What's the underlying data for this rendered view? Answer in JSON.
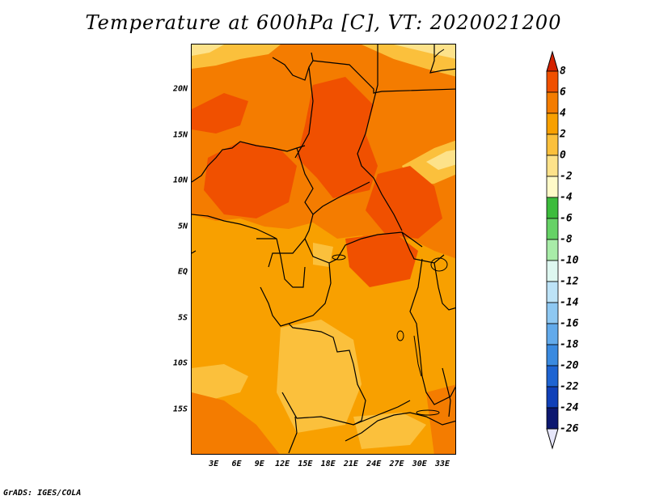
{
  "title": "Temperature at 600hPa [C], VT: 2020021200",
  "credit": "GrADS: IGES/COLA",
  "map": {
    "lon_range": [
      0,
      34.8
    ],
    "lat_range": [
      -20,
      25
    ],
    "lat_ticks": [
      {
        "label": "20N",
        "lat": 20
      },
      {
        "label": "15N",
        "lat": 15
      },
      {
        "label": "10N",
        "lat": 10
      },
      {
        "label": "5N",
        "lat": 5
      },
      {
        "label": "EQ",
        "lat": 0
      },
      {
        "label": "5S",
        "lat": -5
      },
      {
        "label": "10S",
        "lat": -10
      },
      {
        "label": "15S",
        "lat": -15
      }
    ],
    "lon_ticks": [
      {
        "label": "3E",
        "lon": 3
      },
      {
        "label": "6E",
        "lon": 6
      },
      {
        "label": "9E",
        "lon": 9
      },
      {
        "label": "12E",
        "lon": 12
      },
      {
        "label": "15E",
        "lon": 15
      },
      {
        "label": "18E",
        "lon": 18
      },
      {
        "label": "21E",
        "lon": 21
      },
      {
        "label": "24E",
        "lon": 24
      },
      {
        "label": "27E",
        "lon": 27
      },
      {
        "label": "30E",
        "lon": 30
      },
      {
        "label": "33E",
        "lon": 33
      }
    ]
  },
  "colorbar": {
    "levels": [
      "8",
      "6",
      "4",
      "2",
      "0",
      "-2",
      "-4",
      "-6",
      "-8",
      "-10",
      "-12",
      "-14",
      "-16",
      "-18",
      "-20",
      "-22",
      "-24",
      "-26"
    ],
    "colors": [
      "#d42200",
      "#f05000",
      "#f47c00",
      "#f8a000",
      "#fbc03c",
      "#fde28a",
      "#fffac8",
      "#3cbc3c",
      "#66d266",
      "#a8eca8",
      "#def7f0",
      "#bde3f7",
      "#8ec8f2",
      "#62aaeb",
      "#3a8ae0",
      "#1e64d2",
      "#1040b8",
      "#0c1870",
      "#000a55"
    ],
    "top_arrow_color": "#d42200",
    "bottom_arrow_color": "#e6e6fa"
  }
}
